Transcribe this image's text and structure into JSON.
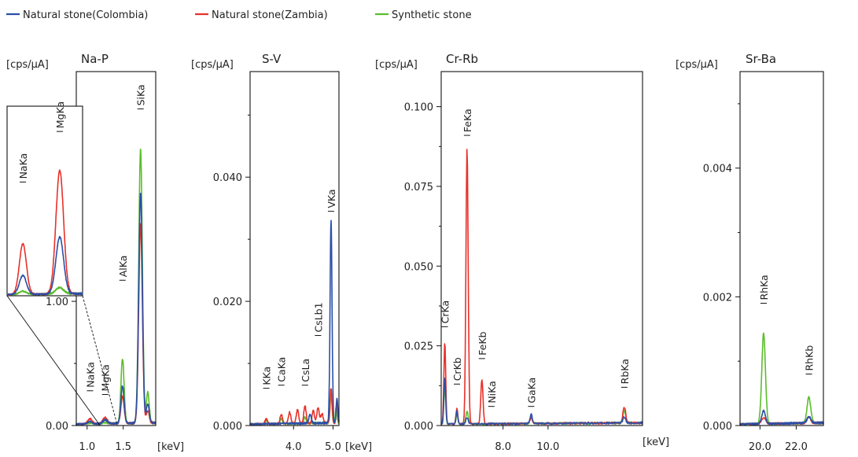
{
  "legend": [
    {
      "name": "Natural stone(Colombia)",
      "color": "#2b4fa8"
    },
    {
      "name": "Natural stone(Zambia)",
      "color": "#e8312a"
    },
    {
      "name": "Synthetic stone",
      "color": "#5bbd2c"
    }
  ],
  "unit_label": "[cps/μA]",
  "x_unit_label": "[keV]",
  "chart_data": [
    {
      "id": "na-p",
      "type": "line",
      "title": "Na-P",
      "xlim": [
        0.85,
        1.95
      ],
      "ylim": [
        0,
        2.85
      ],
      "yticks": [
        {
          "v": 0,
          "label": "0.00"
        },
        {
          "v": 1,
          "label": "1.00"
        }
      ],
      "yminor": [
        0.5,
        1.5,
        2.0,
        2.5
      ],
      "xticks": [
        {
          "v": 1.0,
          "label": "1.0"
        },
        {
          "v": 1.5,
          "label": "1.5"
        }
      ],
      "x_unit_shown": true,
      "peaks": [
        {
          "label": "NaKa",
          "x": 1.04,
          "y": 0.04,
          "text_y": 0.28
        },
        {
          "label": "MgKa",
          "x": 1.25,
          "y": 0.05,
          "text_y": 0.25
        },
        {
          "label": "AlKa",
          "x": 1.49,
          "y": 0.62,
          "text_y": 1.17
        },
        {
          "label": "SiKa",
          "x": 1.74,
          "y": 2.3,
          "text_y": 2.55
        }
      ],
      "series": [
        {
          "name": "Natural stone(Colombia)",
          "peaks": [
            [
              1.04,
              0.02,
              0.03
            ],
            [
              1.25,
              0.03,
              0.03
            ],
            [
              1.49,
              0.3,
              0.022
            ],
            [
              1.74,
              1.85,
              0.025
            ],
            [
              1.84,
              0.15,
              0.02
            ]
          ]
        },
        {
          "name": "Natural stone(Zambia)",
          "peaks": [
            [
              1.04,
              0.04,
              0.03
            ],
            [
              1.25,
              0.05,
              0.03
            ],
            [
              1.49,
              0.22,
              0.022
            ],
            [
              1.74,
              1.6,
              0.025
            ],
            [
              1.84,
              0.1,
              0.02
            ]
          ]
        },
        {
          "name": "Synthetic stone",
          "peaks": [
            [
              1.04,
              0.005,
              0.03
            ],
            [
              1.25,
              0.01,
              0.03
            ],
            [
              1.49,
              0.52,
              0.022
            ],
            [
              1.74,
              2.2,
              0.025
            ],
            [
              1.84,
              0.25,
              0.02
            ]
          ]
        }
      ],
      "inset": {
        "xlim": [
          0.95,
          1.38
        ],
        "ylim": [
          0,
          0.06
        ],
        "peaks": [
          {
            "label": "NaKa",
            "x": 1.04,
            "y": 0.021,
            "text_y": 0.036
          },
          {
            "label": "MgKa",
            "x": 1.25,
            "y": 0.044,
            "text_y": 0.052
          }
        ],
        "series": [
          {
            "name": "Natural stone(Colombia)",
            "peaks": [
              [
                1.04,
                0.006,
                0.02
              ],
              [
                1.25,
                0.018,
                0.022
              ]
            ]
          },
          {
            "name": "Natural stone(Zambia)",
            "peaks": [
              [
                1.04,
                0.016,
                0.02
              ],
              [
                1.25,
                0.039,
                0.022
              ]
            ]
          },
          {
            "name": "Synthetic stone",
            "peaks": [
              [
                1.04,
                0.001,
                0.02
              ],
              [
                1.25,
                0.002,
                0.022
              ]
            ]
          }
        ]
      }
    },
    {
      "id": "s-v",
      "type": "line",
      "title": "S-V",
      "xlim": [
        2.9,
        5.15
      ],
      "ylim": [
        0,
        0.057
      ],
      "yticks": [
        {
          "v": 0,
          "label": "0.000"
        },
        {
          "v": 0.02,
          "label": "0.020"
        },
        {
          "v": 0.04,
          "label": "0.040"
        }
      ],
      "yminor": [
        0.01,
        0.03,
        0.05
      ],
      "xticks": [
        {
          "v": 4.0,
          "label": "4.0"
        },
        {
          "v": 5.0,
          "label": "5.0"
        }
      ],
      "x_unit_shown": true,
      "peaks": [
        {
          "label": "KKa",
          "x": 3.31,
          "y": 0.0035,
          "text_y": 0.006
        },
        {
          "label": "CaKa",
          "x": 3.69,
          "y": 0.004,
          "text_y": 0.0065
        },
        {
          "label": "CsLa",
          "x": 4.29,
          "y": 0.004,
          "text_y": 0.0065
        },
        {
          "label": "CsLb1",
          "x": 4.62,
          "y": 0.012,
          "text_y": 0.0145
        },
        {
          "label": "VKa",
          "x": 4.95,
          "y": 0.032,
          "text_y": 0.0345
        }
      ],
      "series": [
        {
          "name": "Natural stone(Colombia)",
          "peaks": [
            [
              4.95,
              0.0325,
              0.025
            ],
            [
              4.42,
              0.0015,
              0.03
            ],
            [
              5.1,
              0.004,
              0.02
            ]
          ]
        },
        {
          "name": "Natural stone(Zambia)",
          "peaks": [
            [
              3.31,
              0.0008,
              0.03
            ],
            [
              3.69,
              0.0015,
              0.03
            ],
            [
              3.9,
              0.0018,
              0.03
            ],
            [
              4.1,
              0.0022,
              0.03
            ],
            [
              4.29,
              0.0028,
              0.03
            ],
            [
              4.5,
              0.002,
              0.03
            ],
            [
              4.62,
              0.0025,
              0.03
            ],
            [
              4.72,
              0.0015,
              0.03
            ],
            [
              4.95,
              0.0055,
              0.025
            ],
            [
              5.1,
              0.0035,
              0.02
            ]
          ]
        },
        {
          "name": "Synthetic stone",
          "peaks": [
            [
              3.31,
              0.0005,
              0.03
            ],
            [
              3.69,
              0.0008,
              0.03
            ],
            [
              4.29,
              0.001,
              0.03
            ],
            [
              4.95,
              0.0045,
              0.025
            ],
            [
              5.08,
              0.0025,
              0.02
            ]
          ]
        }
      ]
    },
    {
      "id": "cr-rb",
      "type": "line",
      "title": "Cr-Rb",
      "xlim": [
        5.25,
        14.2
      ],
      "ylim": [
        0,
        0.111
      ],
      "yticks": [
        {
          "v": 0,
          "label": "0.000"
        },
        {
          "v": 0.025,
          "label": "0.025"
        },
        {
          "v": 0.05,
          "label": "0.050"
        },
        {
          "v": 0.075,
          "label": "0.075"
        },
        {
          "v": 0.1,
          "label": "0.100"
        }
      ],
      "yminor": [
        0.0125,
        0.0375,
        0.0625,
        0.0875
      ],
      "xticks": [
        {
          "v": 8.0,
          "label": "8.0"
        },
        {
          "v": 10.0,
          "label": "10.0"
        }
      ],
      "x_unit_shown": true,
      "peaks": [
        {
          "label": "CrKa",
          "x": 5.41,
          "y": 0.028,
          "text_y": 0.031
        },
        {
          "label": "CrKb",
          "x": 5.95,
          "y": 0.01,
          "text_y": 0.013
        },
        {
          "label": "FeKa",
          "x": 6.4,
          "y": 0.088,
          "text_y": 0.091
        },
        {
          "label": "FeKb",
          "x": 7.06,
          "y": 0.016,
          "text_y": 0.021
        },
        {
          "label": "NiKa",
          "x": 7.48,
          "y": 0.003,
          "text_y": 0.006
        },
        {
          "label": "GaKa",
          "x": 9.25,
          "y": 0.003,
          "text_y": 0.006
        },
        {
          "label": "RbKa",
          "x": 13.39,
          "y": 0.005,
          "text_y": 0.012
        }
      ],
      "series": [
        {
          "name": "Natural stone(Colombia)",
          "peaks": [
            [
              5.41,
              0.015,
              0.04
            ],
            [
              5.95,
              0.004,
              0.04
            ],
            [
              6.4,
              0.002,
              0.05
            ],
            [
              9.25,
              0.003,
              0.05
            ],
            [
              13.39,
              0.002,
              0.06
            ]
          ]
        },
        {
          "name": "Natural stone(Zambia)",
          "peaks": [
            [
              5.41,
              0.026,
              0.04
            ],
            [
              5.95,
              0.005,
              0.04
            ],
            [
              6.4,
              0.087,
              0.05
            ],
            [
              7.06,
              0.014,
              0.05
            ],
            [
              9.25,
              0.002,
              0.05
            ],
            [
              13.39,
              0.005,
              0.06
            ]
          ]
        },
        {
          "name": "Synthetic stone",
          "peaks": [
            [
              5.41,
              0.012,
              0.04
            ],
            [
              5.95,
              0.003,
              0.04
            ],
            [
              6.4,
              0.004,
              0.05
            ],
            [
              9.25,
              0.002,
              0.05
            ],
            [
              13.39,
              0.004,
              0.06
            ]
          ]
        }
      ]
    },
    {
      "id": "sr-ba",
      "type": "line",
      "title": "Sr-Ba",
      "xlim": [
        18.9,
        23.5
      ],
      "ylim": [
        0,
        0.0055
      ],
      "yticks": [
        {
          "v": 0,
          "label": "0.000"
        },
        {
          "v": 0.002,
          "label": "0.002"
        },
        {
          "v": 0.004,
          "label": "0.004"
        }
      ],
      "yminor": [
        0.001,
        0.003,
        0.005
      ],
      "xticks": [
        {
          "v": 20.0,
          "label": "20.0"
        },
        {
          "v": 22.0,
          "label": "22.0"
        }
      ],
      "x_unit_shown": false,
      "peaks": [
        {
          "label": "RhKa",
          "x": 20.2,
          "y": 0.0016,
          "text_y": 0.0019
        },
        {
          "label": "RhKb",
          "x": 22.7,
          "y": 0.0006,
          "text_y": 0.0008
        }
      ],
      "series": [
        {
          "name": "Natural stone(Colombia)",
          "peaks": [
            [
              20.2,
              0.0002,
              0.1
            ],
            [
              22.7,
              0.0001,
              0.1
            ]
          ]
        },
        {
          "name": "Natural stone(Zambia)",
          "peaks": [
            [
              20.2,
              0.0001,
              0.1
            ],
            [
              22.7,
              0.0001,
              0.1
            ]
          ]
        },
        {
          "name": "Synthetic stone",
          "peaks": [
            [
              20.2,
              0.0014,
              0.1
            ],
            [
              22.7,
              0.0004,
              0.1
            ]
          ]
        }
      ]
    }
  ]
}
